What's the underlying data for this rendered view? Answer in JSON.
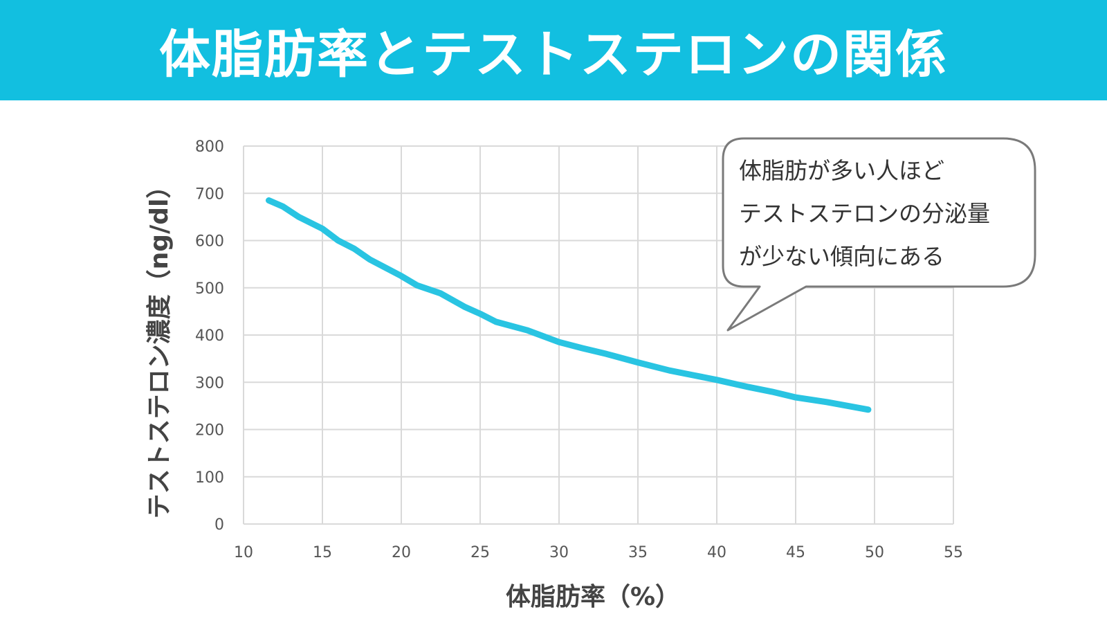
{
  "title": "体脂肪率とテストステロンの関係",
  "callout": {
    "lines": [
      "体脂肪が多い人ほど",
      "テストステロンの分泌量",
      "が少ない傾向にある"
    ]
  },
  "colors": {
    "banner": "#12bfe0",
    "line": "#29c4e2",
    "grid": "#d9d9d9",
    "axis_text": "#555555"
  },
  "chart_data": {
    "type": "line",
    "xlabel": "体脂肪率（%）",
    "ylabel": "テストステロン濃度（ng/dl）",
    "xlim": [
      10,
      55
    ],
    "ylim": [
      0,
      800
    ],
    "x_ticks": [
      10,
      15,
      20,
      25,
      30,
      35,
      40,
      45,
      50,
      55
    ],
    "y_ticks": [
      0,
      100,
      200,
      300,
      400,
      500,
      600,
      700,
      800
    ],
    "grid": true,
    "series": [
      {
        "x": [
          11.6,
          12.5,
          13.5,
          15,
          16,
          17,
          18,
          20,
          21,
          22.5,
          24,
          25,
          26,
          28,
          30,
          31.5,
          33,
          35,
          37,
          38.5,
          40,
          42,
          43.5,
          45,
          47,
          49.6
        ],
        "y": [
          685,
          672,
          650,
          625,
          600,
          583,
          560,
          525,
          505,
          488,
          460,
          445,
          428,
          410,
          385,
          372,
          360,
          342,
          325,
          315,
          305,
          290,
          280,
          268,
          258,
          242
        ]
      }
    ]
  }
}
